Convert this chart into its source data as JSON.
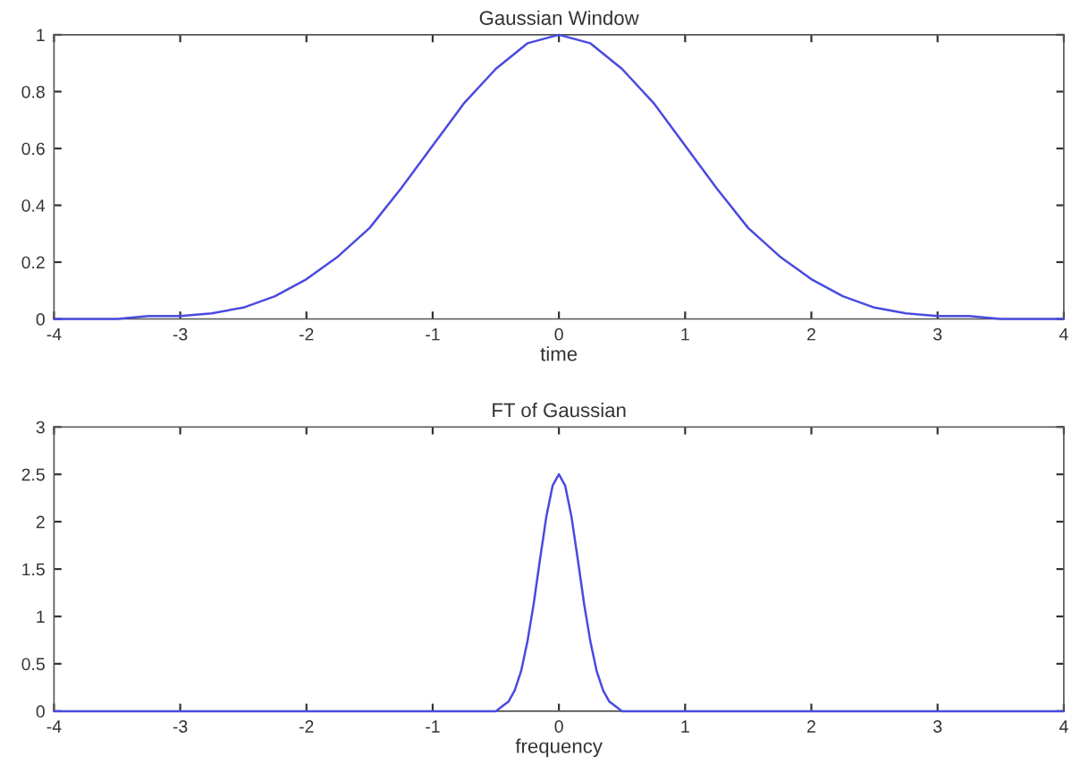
{
  "chart_data": [
    {
      "type": "line",
      "title": "Gaussian Window",
      "xlabel": "time",
      "xlim": [
        -4,
        4
      ],
      "xticks": [
        -4,
        -3,
        -2,
        -1,
        0,
        1,
        2,
        3,
        4
      ],
      "ylim": [
        0,
        1
      ],
      "yticks": [
        0,
        0.2,
        0.4,
        0.6,
        0.8,
        1
      ],
      "grid": false,
      "legend": false,
      "marker": "none",
      "line_style": "solid",
      "series": [
        {
          "color": "#4a4ae0",
          "x": [
            -4,
            -3.75,
            -3.5,
            -3.25,
            -3,
            -2.75,
            -2.5,
            -2.25,
            -2,
            -1.75,
            -1.5,
            -1.25,
            -1,
            -0.75,
            -0.5,
            -0.25,
            0,
            0.25,
            0.5,
            0.75,
            1,
            1.25,
            1.5,
            1.75,
            2,
            2.25,
            2.5,
            2.75,
            3,
            3.25,
            3.5,
            3.75,
            4
          ],
          "values": [
            0,
            0,
            0,
            0.01,
            0.01,
            0.02,
            0.04,
            0.08,
            0.14,
            0.22,
            0.32,
            0.46,
            0.61,
            0.76,
            0.88,
            0.97,
            1,
            0.97,
            0.88,
            0.76,
            0.61,
            0.46,
            0.32,
            0.22,
            0.14,
            0.08,
            0.04,
            0.02,
            0.01,
            0.01,
            0,
            0,
            0
          ]
        }
      ]
    },
    {
      "type": "line",
      "title": "FT of Gaussian",
      "xlabel": "frequency",
      "xlim": [
        -4,
        4
      ],
      "xticks": [
        -4,
        -3,
        -2,
        -1,
        0,
        1,
        2,
        3,
        4
      ],
      "ylim": [
        0,
        3
      ],
      "yticks": [
        0,
        0.5,
        1,
        1.5,
        2,
        2.5,
        3
      ],
      "grid": false,
      "legend": false,
      "marker": "none",
      "line_style": "solid",
      "series": [
        {
          "color": "#4a4ae0",
          "x": [
            -4,
            -3,
            -2,
            -1,
            -0.6,
            -0.55,
            -0.5,
            -0.45,
            -0.4,
            -0.35,
            -0.3,
            -0.25,
            -0.2,
            -0.15,
            -0.1,
            -0.05,
            0,
            0.05,
            0.1,
            0.15,
            0.2,
            0.25,
            0.3,
            0.35,
            0.4,
            0.45,
            0.5,
            0.55,
            0.6,
            1,
            2,
            3,
            4
          ],
          "values": [
            0,
            0,
            0,
            0,
            0,
            0,
            0,
            0.05,
            0.1,
            0.22,
            0.42,
            0.73,
            1.13,
            1.6,
            2.05,
            2.38,
            2.5,
            2.38,
            2.05,
            1.6,
            1.13,
            0.73,
            0.42,
            0.22,
            0.1,
            0.05,
            0,
            0,
            0,
            0,
            0,
            0,
            0
          ]
        }
      ]
    }
  ]
}
